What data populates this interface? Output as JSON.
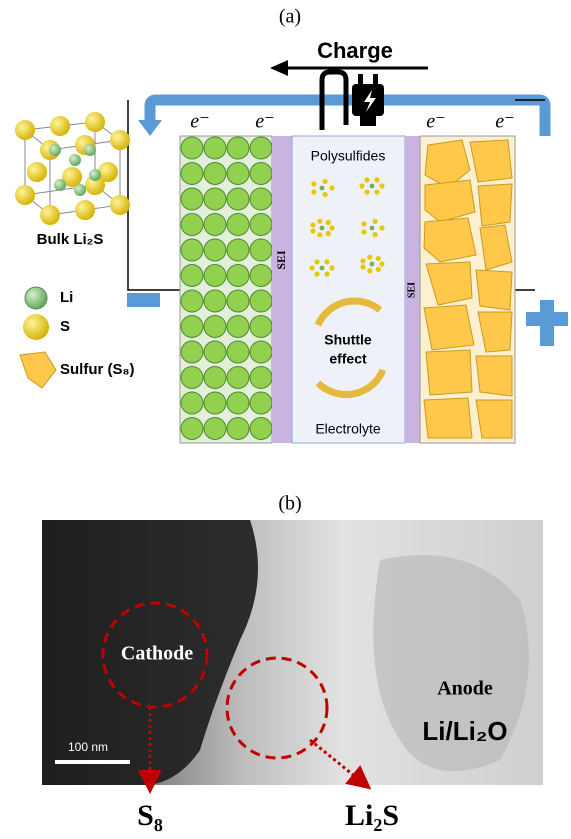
{
  "panel_a": {
    "label": "(a)",
    "charge": "Charge",
    "electrons": [
      "e⁻",
      "e⁻",
      "e⁻",
      "e⁻"
    ],
    "crystal_label": "Bulk Li₂S",
    "legend": [
      "Li",
      "S",
      "Sulfur (S₈)"
    ],
    "polysulfides": "Polysulfides",
    "sei": [
      "SEI",
      "SEI"
    ],
    "shuttle": [
      "Shuttle",
      "effect"
    ],
    "electrolyte": "Electrolyte"
  },
  "panel_b": {
    "label": "(b)",
    "cathode": "Cathode",
    "scale_bar": "100 nm",
    "anode": "Anode",
    "anode_material": "Li/Li₂O",
    "products": [
      "S₈",
      "Li₂S"
    ]
  }
}
